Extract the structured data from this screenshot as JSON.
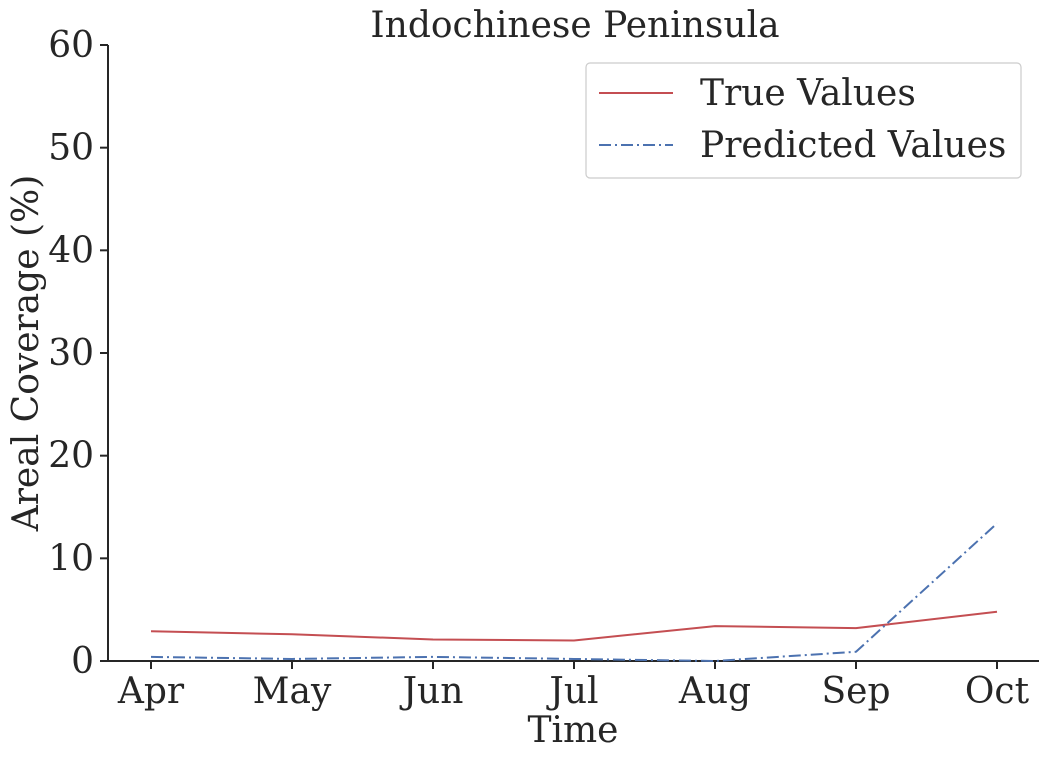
{
  "chart_data": {
    "type": "line",
    "title": "Indochinese Peninsula",
    "xlabel": "Time",
    "ylabel": "Areal Coverage (%)",
    "categories": [
      "Apr",
      "May",
      "Jun",
      "Jul",
      "Aug",
      "Sep",
      "Oct"
    ],
    "ylim": [
      0,
      60
    ],
    "yticks": [
      0,
      10,
      20,
      30,
      40,
      50,
      60
    ],
    "grid": false,
    "legend_position": "top-right",
    "series": [
      {
        "name": "True Values",
        "values": [
          2.9,
          2.6,
          2.1,
          2.0,
          3.4,
          3.2,
          4.8
        ],
        "color": "#c44e52",
        "style": "solid"
      },
      {
        "name": "Predicted Values",
        "values": [
          0.4,
          0.2,
          0.4,
          0.2,
          0.0,
          0.9,
          13.4
        ],
        "color": "#4c72b0",
        "style": "dashdot"
      }
    ]
  }
}
